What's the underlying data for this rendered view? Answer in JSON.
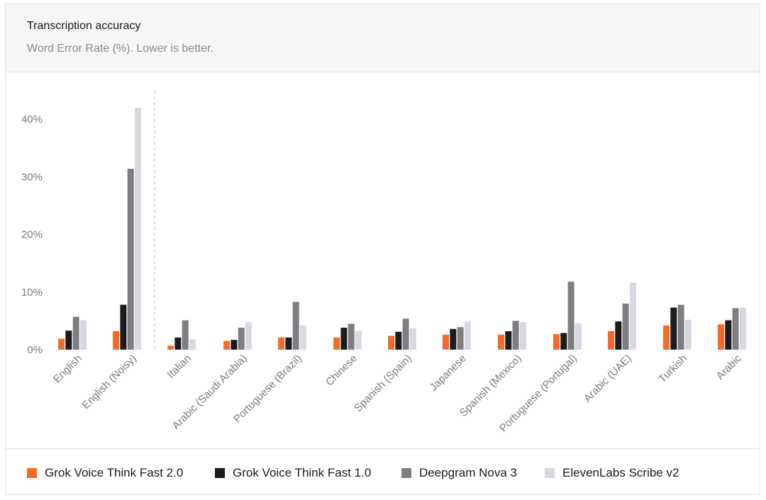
{
  "chart_data": {
    "type": "bar",
    "title": "Transcription accuracy",
    "subtitle": "Word Error Rate (%). Lower is better.",
    "categories": [
      "English",
      "English (Noisy)",
      "Italian",
      "Arabic (Saudi Arabia)",
      "Portuguese (Brazil)",
      "Chinese",
      "Spanish (Spain)",
      "Japanese",
      "Spanish (Mexico)",
      "Portuguese (Portugal)",
      "Arabic (UAE)",
      "Turkish",
      "Arabic"
    ],
    "series": [
      {
        "name": "Grok Voice Think Fast 2.0",
        "color": "#f26b2a",
        "values": [
          1.9,
          3.2,
          0.7,
          1.5,
          2.1,
          2.1,
          2.4,
          2.6,
          2.6,
          2.7,
          3.2,
          4.2,
          4.4
        ]
      },
      {
        "name": "Grok Voice Think Fast 1.0",
        "color": "#1c1c1e",
        "values": [
          3.3,
          7.8,
          2.1,
          1.7,
          2.1,
          3.8,
          3.1,
          3.6,
          3.2,
          2.9,
          4.9,
          7.3,
          5.1
        ]
      },
      {
        "name": "Deepgram Nova 3",
        "color": "#7e7e82",
        "values": [
          5.7,
          31.4,
          5.1,
          3.8,
          8.3,
          4.5,
          5.4,
          3.9,
          5.0,
          11.8,
          8.0,
          7.8,
          7.2
        ]
      },
      {
        "name": "ElevenLabs Scribe v2",
        "color": "#d8d8e0",
        "values": [
          5.1,
          42.0,
          1.8,
          4.8,
          4.2,
          3.3,
          3.7,
          4.9,
          4.8,
          4.6,
          11.6,
          5.2,
          7.3
        ]
      }
    ],
    "y_ticks": [
      "0%",
      "10%",
      "20%",
      "30%",
      "40%"
    ],
    "y_tick_values": [
      0,
      10,
      20,
      30,
      40
    ],
    "ylim": [
      0,
      42
    ],
    "divider_after_category": "English (Noisy)",
    "grid": false,
    "legend_position": "bottom"
  }
}
